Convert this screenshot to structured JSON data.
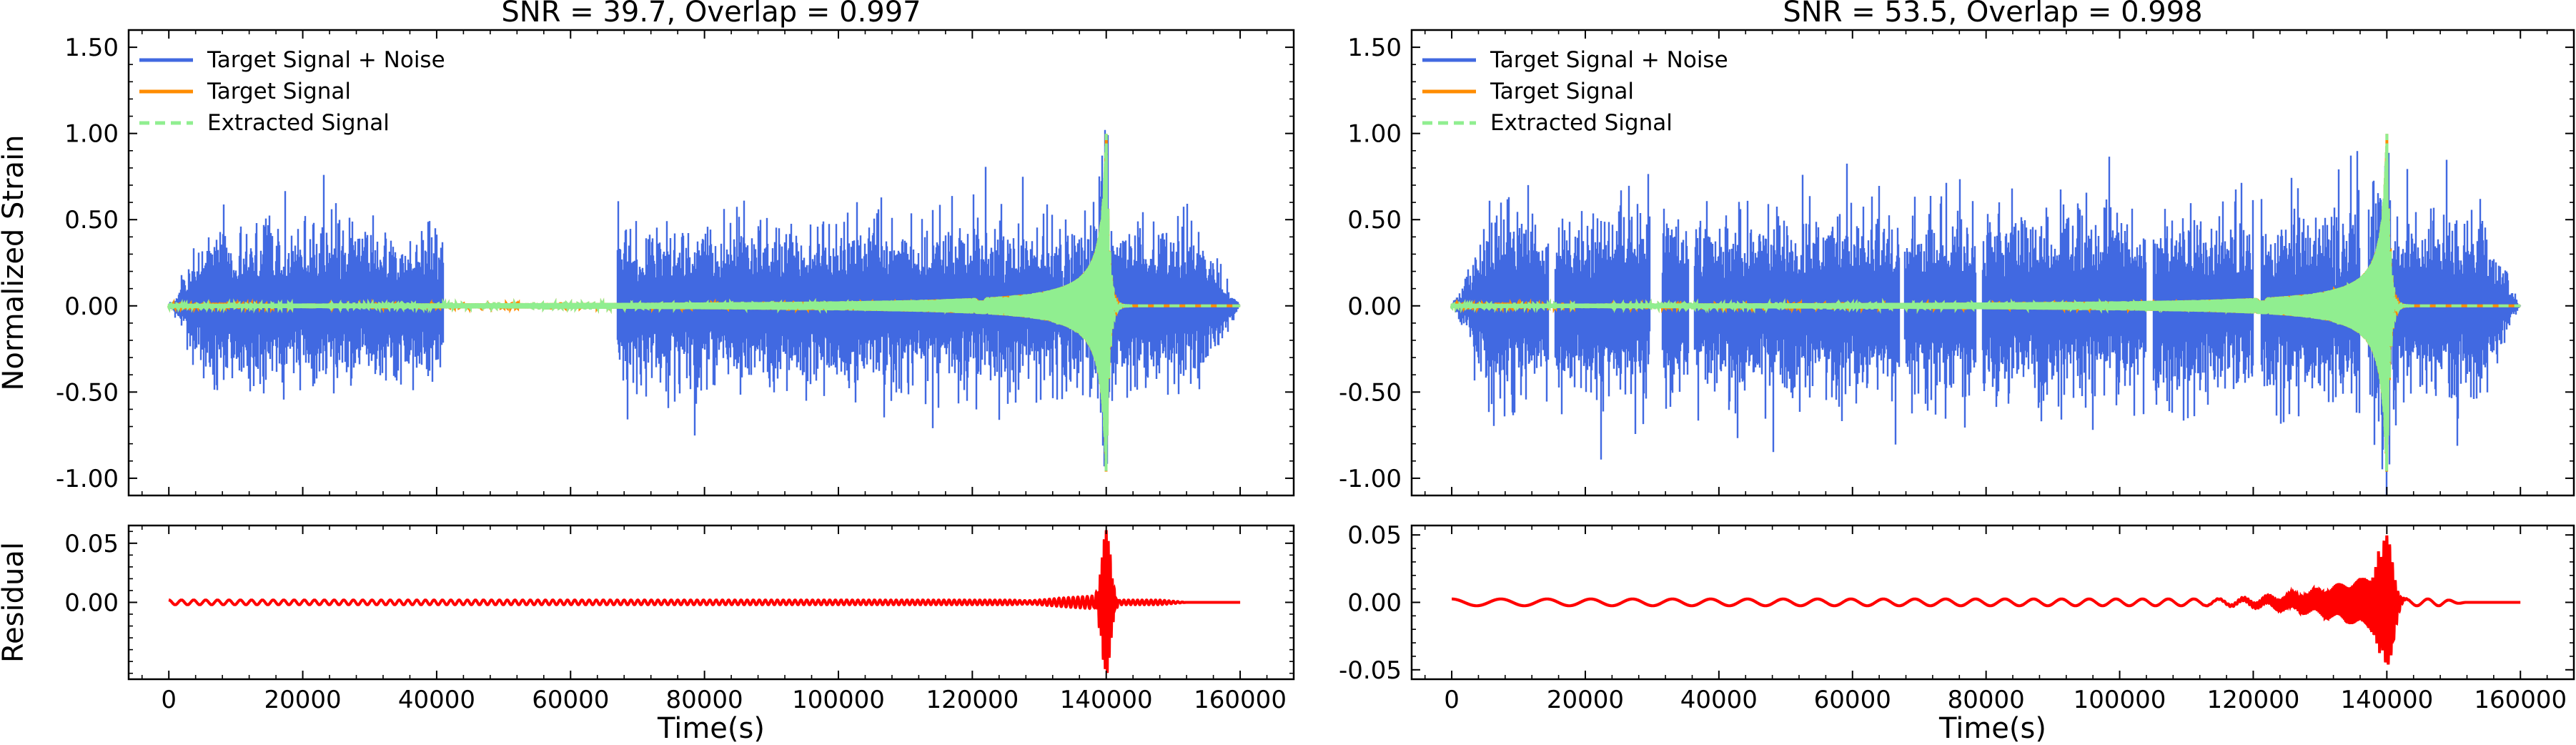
{
  "figure": {
    "xlabel": "Time(s)",
    "ylabel_main": "Normalized Strain",
    "ylabel_residual": "Residual"
  },
  "legend": {
    "entries": [
      "Target Signal + Noise",
      "Target Signal",
      "Extracted Signal"
    ],
    "placement": "top-left"
  },
  "colors": {
    "noise": "#4169e1",
    "target": "#ff8c00",
    "extracted": "#90ee90",
    "residual": "#ff0000"
  },
  "chart_data": [
    {
      "type": "line",
      "title": "SNR = 39.7, Overlap = 0.997",
      "xlabel": "",
      "ylabel": "Normalized Strain",
      "xlim": [
        -6000,
        168000
      ],
      "ylim": [
        -1.1,
        1.6
      ],
      "yticks": [
        -1.0,
        -0.5,
        0.0,
        0.5,
        1.0,
        1.5
      ],
      "ytick_labels": [
        "-1.00",
        "-0.50",
        "0.00",
        "0.50",
        "1.00",
        "1.50"
      ],
      "xticks": [
        0,
        20000,
        40000,
        60000,
        80000,
        100000,
        120000,
        140000,
        160000
      ],
      "gaps": [
        [
          41000,
          67000
        ]
      ],
      "series": [
        {
          "name": "Target Signal + Noise",
          "envelope_amplitude": 0.3,
          "signal_peak": 1.0,
          "signal_peak_time": 140000
        },
        {
          "name": "Target Signal",
          "amplitude_range": [
            -1.0,
            1.0
          ],
          "merger_time": 140000
        },
        {
          "name": "Extracted Signal",
          "amplitude_range": [
            -1.0,
            1.0
          ],
          "merger_time": 140000
        }
      ]
    },
    {
      "type": "line",
      "title": "",
      "xlabel": "Time(s)",
      "ylabel": "Residual",
      "xlim": [
        -6000,
        168000
      ],
      "ylim": [
        -0.065,
        0.065
      ],
      "yticks": [
        0.0,
        0.05
      ],
      "ytick_labels": [
        "0.00",
        "0.05"
      ],
      "xticks": [
        0,
        20000,
        40000,
        60000,
        80000,
        100000,
        120000,
        140000,
        160000
      ],
      "xtick_labels": [
        "0",
        "20000",
        "40000",
        "60000",
        "80000",
        "100000",
        "120000",
        "140000",
        "160000"
      ],
      "series": [
        {
          "name": "",
          "peak_abs": 0.06,
          "peak_time": 140000
        }
      ]
    },
    {
      "type": "line",
      "title": "SNR = 53.5, Overlap = 0.998",
      "xlabel": "",
      "ylabel": "",
      "xlim": [
        -6000,
        168000
      ],
      "ylim": [
        -1.1,
        1.6
      ],
      "yticks": [
        -1.0,
        -0.5,
        0.0,
        0.5,
        1.0,
        1.5
      ],
      "ytick_labels": [
        "-1.00",
        "-0.50",
        "0.00",
        "0.50",
        "1.00",
        "1.50"
      ],
      "xticks": [
        0,
        20000,
        40000,
        60000,
        80000,
        100000,
        120000,
        140000,
        160000
      ],
      "gaps": [
        [
          14500,
          15500
        ],
        [
          29700,
          31500
        ],
        [
          35500,
          36300
        ],
        [
          67000,
          67800
        ],
        [
          78500,
          79400
        ],
        [
          104000,
          105000
        ],
        [
          120000,
          121200
        ],
        [
          136000,
          137200
        ]
      ],
      "series": [
        {
          "name": "Target Signal + Noise",
          "envelope_amplitude": 0.35,
          "signal_peak": 1.0,
          "signal_peak_time": 140000
        },
        {
          "name": "Target Signal",
          "amplitude_range": [
            -1.0,
            1.0
          ],
          "merger_time": 140000
        },
        {
          "name": "Extracted Signal",
          "amplitude_range": [
            -1.0,
            1.0
          ],
          "merger_time": 140000
        }
      ]
    },
    {
      "type": "line",
      "title": "",
      "xlabel": "Time(s)",
      "ylabel": "",
      "xlim": [
        -6000,
        168000
      ],
      "ylim": [
        -0.057,
        0.057
      ],
      "yticks": [
        -0.05,
        0.0,
        0.05
      ],
      "ytick_labels": [
        "-0.05",
        "0.00",
        "0.05"
      ],
      "xticks": [
        0,
        20000,
        40000,
        60000,
        80000,
        100000,
        120000,
        140000,
        160000
      ],
      "xtick_labels": [
        "0",
        "20000",
        "40000",
        "60000",
        "80000",
        "100000",
        "120000",
        "140000",
        "160000"
      ],
      "series": [
        {
          "name": "",
          "peak_abs": 0.048,
          "peak_time": 140000
        }
      ]
    }
  ]
}
